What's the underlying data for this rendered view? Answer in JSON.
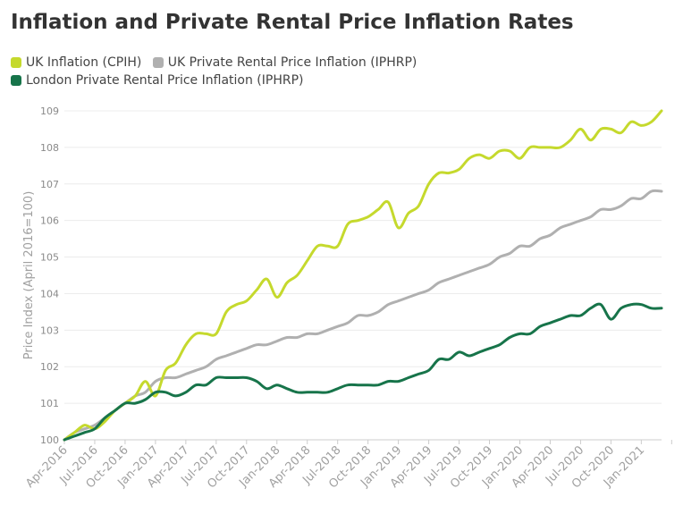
{
  "chart_data": {
    "type": "line",
    "title": "Inflation and Private Rental Price Inflation Rates",
    "xlabel": "",
    "ylabel": "Price Index (April 2016=100)",
    "ylim": [
      100,
      109
    ],
    "yticks": [
      "100",
      "101",
      "102",
      "103",
      "104",
      "105",
      "106",
      "107",
      "108",
      "109"
    ],
    "xtick_labels": [
      "Apr-2016",
      "Jul-2016",
      "Oct-2016",
      "Jan-2017",
      "Apr-2017",
      "Jul-2017",
      "Oct-2017",
      "Jan-2018",
      "Apr-2018",
      "Jul-2018",
      "Oct-2018",
      "Jan-2019",
      "Apr-2019",
      "Jul-2019",
      "Oct-2019",
      "Jan-2020",
      "Apr-2020",
      "Jul-2020",
      "Oct-2020",
      "Jan-2021"
    ],
    "grid": true,
    "legend_position": "top-left",
    "series": [
      {
        "name": "UK Inflation (CPIH)",
        "color": "#c5d92d",
        "values": [
          100.0,
          100.2,
          100.4,
          100.3,
          100.5,
          100.8,
          101.0,
          101.2,
          101.6,
          101.2,
          101.9,
          102.1,
          102.6,
          102.9,
          102.9,
          102.9,
          103.5,
          103.7,
          103.8,
          104.1,
          104.4,
          103.9,
          104.3,
          104.5,
          104.9,
          105.3,
          105.3,
          105.3,
          105.9,
          106.0,
          106.1,
          106.3,
          106.5,
          105.8,
          106.2,
          106.4,
          107.0,
          107.3,
          107.3,
          107.4,
          107.7,
          107.8,
          107.7,
          107.9,
          107.9,
          107.7,
          108.0,
          108.0,
          108.0,
          108.0,
          108.2,
          108.5,
          108.2,
          108.5,
          108.5,
          108.4,
          108.7,
          108.6,
          108.7,
          109.0
        ]
      },
      {
        "name": "UK Private Rental Price Inflation (IPHRP)",
        "color": "#b0b0b0",
        "values": [
          100.0,
          100.2,
          100.3,
          100.4,
          100.6,
          100.8,
          101.0,
          101.2,
          101.3,
          101.6,
          101.7,
          101.7,
          101.8,
          101.9,
          102.0,
          102.2,
          102.3,
          102.4,
          102.5,
          102.6,
          102.6,
          102.7,
          102.8,
          102.8,
          102.9,
          102.9,
          103.0,
          103.1,
          103.2,
          103.4,
          103.4,
          103.5,
          103.7,
          103.8,
          103.9,
          104.0,
          104.1,
          104.3,
          104.4,
          104.5,
          104.6,
          104.7,
          104.8,
          105.0,
          105.1,
          105.3,
          105.3,
          105.5,
          105.6,
          105.8,
          105.9,
          106.0,
          106.1,
          106.3,
          106.3,
          106.4,
          106.6,
          106.6,
          106.8,
          106.8
        ]
      },
      {
        "name": "London Private Rental Price Inflation (IPHRP)",
        "color": "#17744a",
        "values": [
          100.0,
          100.1,
          100.2,
          100.3,
          100.6,
          100.8,
          101.0,
          101.0,
          101.1,
          101.3,
          101.3,
          101.2,
          101.3,
          101.5,
          101.5,
          101.7,
          101.7,
          101.7,
          101.7,
          101.6,
          101.4,
          101.5,
          101.4,
          101.3,
          101.3,
          101.3,
          101.3,
          101.4,
          101.5,
          101.5,
          101.5,
          101.5,
          101.6,
          101.6,
          101.7,
          101.8,
          101.9,
          102.2,
          102.2,
          102.4,
          102.3,
          102.4,
          102.5,
          102.6,
          102.8,
          102.9,
          102.9,
          103.1,
          103.2,
          103.3,
          103.4,
          103.4,
          103.6,
          103.7,
          103.3,
          103.6,
          103.7,
          103.7,
          103.6,
          103.6
        ]
      }
    ]
  }
}
